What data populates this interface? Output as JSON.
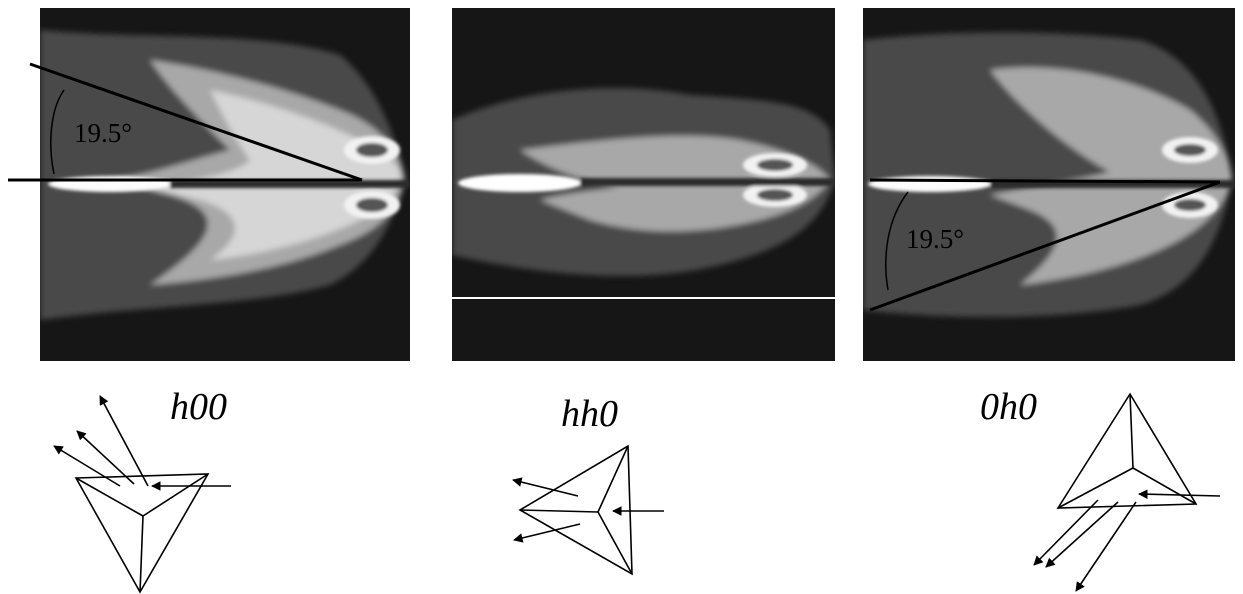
{
  "panels": [
    {
      "label": "h00",
      "angle": "19.5°"
    },
    {
      "label": "hh0"
    },
    {
      "label": "0h0",
      "angle": "19.5°"
    }
  ],
  "colors": {
    "background": "#ffffff",
    "map_dark": "#161616",
    "map_halo": "#4a4a4a",
    "map_mid": "#a8a8a8",
    "map_bright": "#f4f4f4",
    "ink": "#000000"
  },
  "icons": [
    "pyramid-h00-icon",
    "pyramid-hh0-icon",
    "pyramid-0h0-icon"
  ]
}
